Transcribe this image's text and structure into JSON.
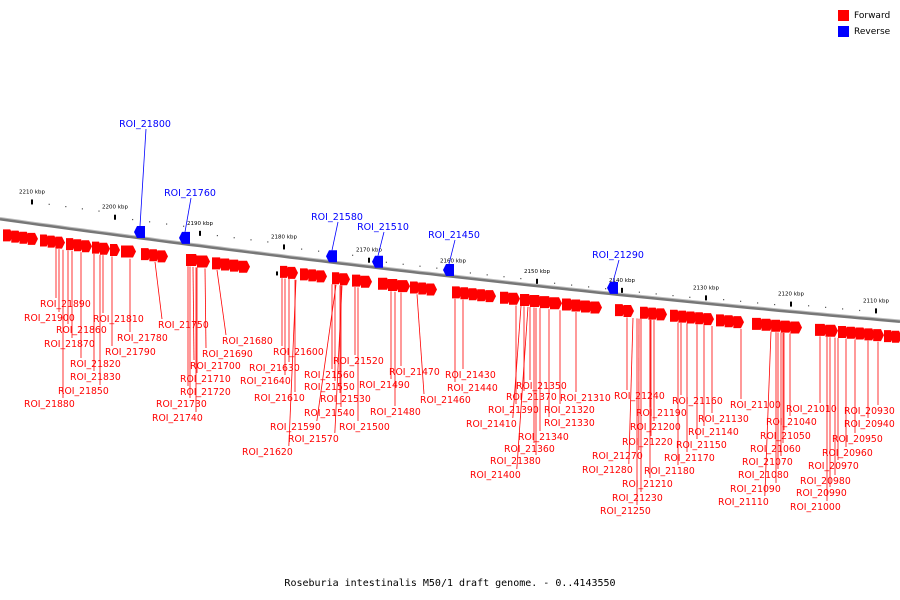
{
  "legend": {
    "forward_label": "Forward",
    "reverse_label": "Reverse",
    "forward_color": "#ff0000",
    "reverse_color": "#0000ff"
  },
  "caption": "Roseburia intestinalis M50/1 draft genome. - 0..4143550",
  "axis": {
    "unit": "kbp",
    "ticks": [
      2210,
      2200,
      2190,
      2180,
      2170,
      2160,
      2150,
      2140,
      2130,
      2120,
      2110
    ]
  },
  "reverse_genes": [
    "ROI_21800",
    "ROI_21760",
    "ROI_21580",
    "ROI_21510",
    "ROI_21450",
    "ROI_21290"
  ],
  "forward_genes": [
    "ROI_21890",
    "ROI_21900",
    "ROI_21860",
    "ROI_21870",
    "ROI_21810",
    "ROI_21790",
    "ROI_21820",
    "ROI_21830",
    "ROI_21850",
    "ROI_21880",
    "ROI_21780",
    "ROI_21750",
    "ROI_21680",
    "ROI_21690",
    "ROI_21700",
    "ROI_21710",
    "ROI_21720",
    "ROI_21730",
    "ROI_21740",
    "ROI_21600",
    "ROI_21630",
    "ROI_21640",
    "ROI_21610",
    "ROI_21620",
    "ROI_21520",
    "ROI_21560",
    "ROI_21550",
    "ROI_21530",
    "ROI_21540",
    "ROI_21590",
    "ROI_21570",
    "ROI_21500",
    "ROI_21470",
    "ROI_21490",
    "ROI_21480",
    "ROI_21460",
    "ROI_21430",
    "ROI_21440",
    "ROI_21350",
    "ROI_21370",
    "ROI_21310",
    "ROI_21390",
    "ROI_21320",
    "ROI_21330",
    "ROI_21410",
    "ROI_21340",
    "ROI_21360",
    "ROI_21380",
    "ROI_21400",
    "ROI_21240",
    "ROI_21190",
    "ROI_21200",
    "ROI_21220",
    "ROI_21270",
    "ROI_21280",
    "ROI_21210",
    "ROI_21230",
    "ROI_21250",
    "ROI_21160",
    "ROI_21130",
    "ROI_21140",
    "ROI_21150",
    "ROI_21170",
    "ROI_21180",
    "ROI_21100",
    "ROI_21010",
    "ROI_21040",
    "ROI_21050",
    "ROI_21060",
    "ROI_21070",
    "ROI_21080",
    "ROI_21090",
    "ROI_21110",
    "ROI_20930",
    "ROI_20940",
    "ROI_20950",
    "ROI_20960",
    "ROI_20970",
    "ROI_20980",
    "ROI_20990",
    "ROI_21000"
  ]
}
